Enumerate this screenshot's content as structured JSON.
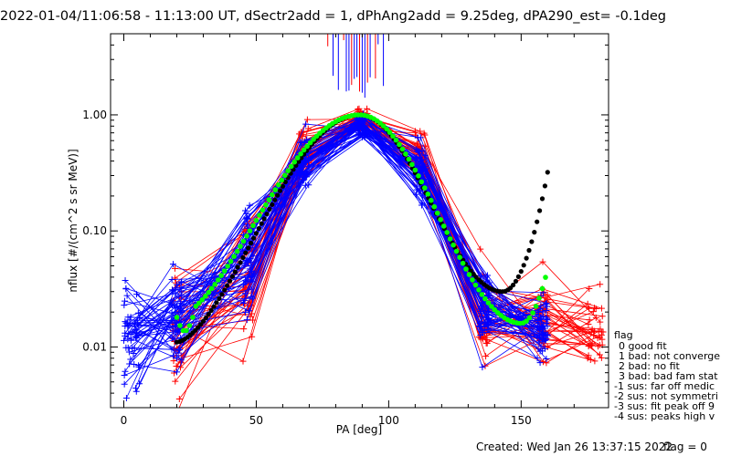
{
  "chart_data": {
    "type": "line",
    "title": "2022-01-04/11:06:58 - 11:13:00 UT, dSectr2add = 1, dPhAng2add = 9.25deg, dPA290_est=  -0.1deg",
    "xlabel": "PA [deg]",
    "ylabel": "nflux [#/(cm^2 s sr MeV)]",
    "xlim": [
      -5,
      183
    ],
    "ylim": [
      0.003,
      5.0
    ],
    "yscale": "log",
    "x_ticks": [
      0,
      50,
      100,
      150
    ],
    "y_ticks": [
      0.01,
      0.1,
      1.0
    ],
    "y_tick_labels": [
      "0.01",
      "0.10",
      "1.00"
    ],
    "colors": {
      "series_a": "#ff0000",
      "series_b": "#0000ff",
      "fit_1": "#000000",
      "fit_2": "#00ff00"
    },
    "pa_bins": [
      3,
      20,
      47,
      68,
      90,
      112,
      136,
      158,
      178
    ],
    "family_a": {
      "count": 40,
      "median": [
        null,
        0.011,
        0.035,
        0.5,
        0.9,
        0.4,
        0.018,
        0.02,
        0.014
      ],
      "spread": [
        null,
        0.85,
        0.75,
        0.3,
        0.12,
        0.32,
        0.55,
        0.5,
        0.4
      ],
      "marker": "+"
    },
    "family_b": {
      "count": 55,
      "median": [
        0.013,
        0.018,
        0.06,
        0.4,
        0.8,
        0.33,
        0.022,
        0.014,
        null
      ],
      "spread": [
        0.55,
        0.55,
        0.6,
        0.3,
        0.12,
        0.3,
        0.45,
        0.4,
        null
      ],
      "marker": "+"
    },
    "high_lines_x": [
      77,
      79,
      81,
      83,
      84,
      85,
      86,
      87,
      88,
      89,
      90,
      91,
      92,
      93,
      94,
      95,
      96,
      98
    ],
    "fit_black": {
      "x_range": [
        20,
        160
      ],
      "center": 89,
      "peak": 1.0,
      "width_log": 2.3,
      "min_x": 143,
      "min_y": 0.03,
      "end_y": 0.32
    },
    "fit_green": {
      "x_range": [
        20,
        160
      ],
      "center": 89,
      "peak": 1.0,
      "start_y": 0.018,
      "min_x": 150,
      "min_y": 0.016,
      "end_y": 0.047
    },
    "legend": {
      "title": "flag",
      "items": [
        "0 good fit",
        "1 bad: not converge",
        "2 bad: no fit",
        "3 bad: bad fam stat",
        "-1 sus: far off medic",
        "-2 sus: not symmetri",
        "-3 sus: fit peak off 9",
        "-4 sus: peaks high v"
      ]
    }
  },
  "footer": {
    "created": "Created: Wed Jan 26 13:37:15 2022",
    "flag": "flag = 0"
  }
}
